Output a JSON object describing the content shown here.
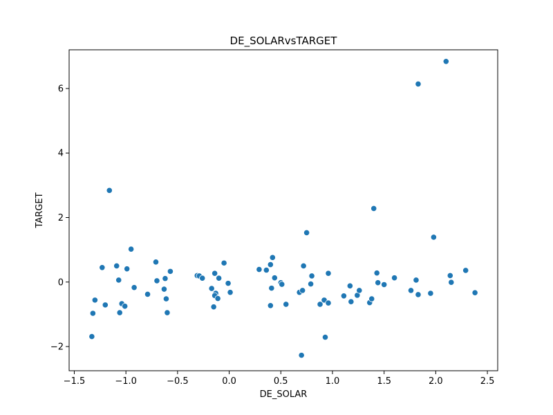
{
  "chart_data": {
    "type": "scatter",
    "title": "DE_SOLARvsTARGET",
    "xlabel": "DE_SOLAR",
    "ylabel": "TARGET",
    "xlim": [
      -1.55,
      2.6
    ],
    "ylim": [
      -2.75,
      7.2
    ],
    "xticks": [
      -1.5,
      -1.0,
      -0.5,
      0.0,
      0.5,
      1.0,
      1.5,
      2.0,
      2.5
    ],
    "xtick_labels": [
      "−1.5",
      "−1.0",
      "−0.5",
      "0.0",
      "0.5",
      "1.0",
      "1.5",
      "2.0",
      "2.5"
    ],
    "yticks": [
      -2,
      0,
      2,
      4,
      6
    ],
    "ytick_labels": [
      "−2",
      "0",
      "2",
      "4",
      "6"
    ],
    "grid": false,
    "point_color": "#1f77b4",
    "points": [
      {
        "x": -1.33,
        "y": -1.69
      },
      {
        "x": -1.32,
        "y": -0.97
      },
      {
        "x": -1.3,
        "y": -0.56
      },
      {
        "x": -1.23,
        "y": 0.45
      },
      {
        "x": -1.2,
        "y": -0.71
      },
      {
        "x": -1.16,
        "y": 2.84
      },
      {
        "x": -1.09,
        "y": 0.5
      },
      {
        "x": -1.07,
        "y": 0.06
      },
      {
        "x": -1.06,
        "y": -0.95
      },
      {
        "x": -1.04,
        "y": -0.67
      },
      {
        "x": -1.01,
        "y": -0.75
      },
      {
        "x": -0.99,
        "y": 0.41
      },
      {
        "x": -0.95,
        "y": 1.02
      },
      {
        "x": -0.92,
        "y": -0.17
      },
      {
        "x": -0.79,
        "y": -0.38
      },
      {
        "x": -0.71,
        "y": 0.62
      },
      {
        "x": -0.7,
        "y": 0.04
      },
      {
        "x": -0.63,
        "y": -0.22
      },
      {
        "x": -0.62,
        "y": 0.11
      },
      {
        "x": -0.61,
        "y": -0.52
      },
      {
        "x": -0.6,
        "y": -0.95
      },
      {
        "x": -0.57,
        "y": 0.33
      },
      {
        "x": -0.31,
        "y": 0.2
      },
      {
        "x": -0.29,
        "y": 0.19
      },
      {
        "x": -0.26,
        "y": 0.12
      },
      {
        "x": -0.17,
        "y": -0.2
      },
      {
        "x": -0.15,
        "y": -0.77
      },
      {
        "x": -0.14,
        "y": 0.27
      },
      {
        "x": -0.13,
        "y": -0.35
      },
      {
        "x": -0.14,
        "y": -0.42
      },
      {
        "x": -0.11,
        "y": -0.51
      },
      {
        "x": -0.1,
        "y": 0.12
      },
      {
        "x": -0.05,
        "y": 0.59
      },
      {
        "x": -0.01,
        "y": -0.04
      },
      {
        "x": 0.01,
        "y": -0.32
      },
      {
        "x": 0.29,
        "y": 0.39
      },
      {
        "x": 0.36,
        "y": 0.37
      },
      {
        "x": 0.4,
        "y": 0.54
      },
      {
        "x": 0.41,
        "y": -0.19
      },
      {
        "x": 0.4,
        "y": -0.73
      },
      {
        "x": 0.42,
        "y": 0.76
      },
      {
        "x": 0.44,
        "y": 0.13
      },
      {
        "x": 0.5,
        "y": -0.02
      },
      {
        "x": 0.51,
        "y": -0.07
      },
      {
        "x": 0.55,
        "y": -0.69
      },
      {
        "x": 0.68,
        "y": -0.32
      },
      {
        "x": 0.71,
        "y": -0.26
      },
      {
        "x": 0.7,
        "y": -2.27
      },
      {
        "x": 0.72,
        "y": 0.5
      },
      {
        "x": 0.75,
        "y": 1.53
      },
      {
        "x": 0.79,
        "y": -0.06
      },
      {
        "x": 0.8,
        "y": 0.19
      },
      {
        "x": 0.88,
        "y": -0.69
      },
      {
        "x": 0.92,
        "y": -0.56
      },
      {
        "x": 0.93,
        "y": -1.71
      },
      {
        "x": 0.96,
        "y": 0.27
      },
      {
        "x": 0.96,
        "y": -0.65
      },
      {
        "x": 1.11,
        "y": -0.43
      },
      {
        "x": 1.17,
        "y": -0.12
      },
      {
        "x": 1.18,
        "y": -0.61
      },
      {
        "x": 1.24,
        "y": -0.41
      },
      {
        "x": 1.26,
        "y": -0.26
      },
      {
        "x": 1.36,
        "y": -0.64
      },
      {
        "x": 1.38,
        "y": -0.52
      },
      {
        "x": 1.4,
        "y": 2.28
      },
      {
        "x": 1.43,
        "y": 0.28
      },
      {
        "x": 1.44,
        "y": -0.02
      },
      {
        "x": 1.5,
        "y": -0.08
      },
      {
        "x": 1.6,
        "y": 0.13
      },
      {
        "x": 1.76,
        "y": -0.26
      },
      {
        "x": 1.81,
        "y": 0.06
      },
      {
        "x": 1.83,
        "y": -0.39
      },
      {
        "x": 1.83,
        "y": 6.14
      },
      {
        "x": 1.95,
        "y": -0.35
      },
      {
        "x": 1.98,
        "y": 1.39
      },
      {
        "x": 2.1,
        "y": 6.84
      },
      {
        "x": 2.14,
        "y": 0.2
      },
      {
        "x": 2.15,
        "y": -0.01
      },
      {
        "x": 2.29,
        "y": 0.36
      },
      {
        "x": 2.38,
        "y": -0.33
      }
    ]
  }
}
